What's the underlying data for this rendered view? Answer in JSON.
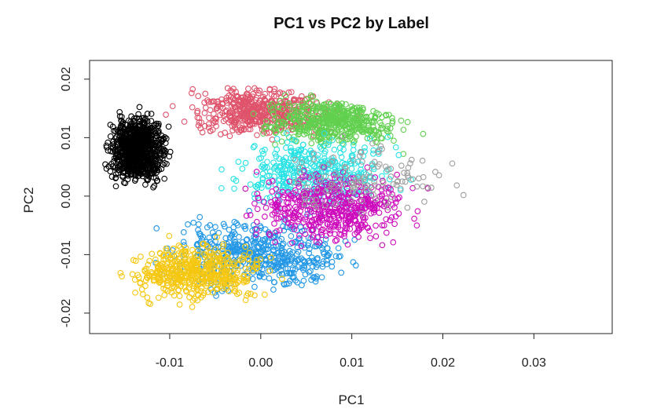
{
  "chart_data": {
    "type": "scatter",
    "title": "PC1 vs PC2 by Label",
    "xlabel": "PC1",
    "ylabel": "PC2",
    "xlim": [
      -0.0188,
      0.0386
    ],
    "ylim": [
      -0.0235,
      0.0232
    ],
    "x_ticks": [
      -0.01,
      0.0,
      0.01,
      0.02,
      0.03
    ],
    "x_tick_labels": [
      "-0.01",
      "0.00",
      "0.01",
      "0.02",
      "0.03"
    ],
    "y_ticks": [
      -0.02,
      -0.01,
      0.0,
      0.01,
      0.02
    ],
    "y_tick_labels": [
      "-0.02",
      "-0.01",
      "0.00",
      "0.01",
      "0.02"
    ],
    "grid": false,
    "legend": "none",
    "marker": "open-circle",
    "series": [
      {
        "color": "#000000",
        "cluster_center": [
          -0.0135,
          0.008
        ],
        "cluster_spread": [
          0.0025,
          0.0045
        ],
        "approx_points": 900
      },
      {
        "color": "#DF536B",
        "cluster_center": [
          0.0,
          0.0145
        ],
        "cluster_spread": [
          0.007,
          0.0035
        ],
        "approx_points": 500
      },
      {
        "color": "#61D04F",
        "cluster_center": [
          0.008,
          0.013
        ],
        "cluster_spread": [
          0.006,
          0.0035
        ],
        "approx_points": 500
      },
      {
        "color": "#2297E6",
        "cluster_center": [
          0.0,
          -0.01
        ],
        "cluster_spread": [
          0.008,
          0.005
        ],
        "approx_points": 500
      },
      {
        "color": "#28E2E5",
        "cluster_center": [
          0.006,
          0.004
        ],
        "cluster_spread": [
          0.007,
          0.005
        ],
        "approx_points": 400
      },
      {
        "color": "#CD0BBC",
        "cluster_center": [
          0.008,
          -0.002
        ],
        "cluster_spread": [
          0.007,
          0.005
        ],
        "approx_points": 500
      },
      {
        "color": "#F5C710",
        "cluster_center": [
          -0.007,
          -0.013
        ],
        "cluster_spread": [
          0.006,
          0.004
        ],
        "approx_points": 500
      },
      {
        "color": "#9E9E9E",
        "cluster_center": [
          0.012,
          0.003
        ],
        "cluster_spread": [
          0.008,
          0.005
        ],
        "approx_points": 120
      }
    ]
  }
}
